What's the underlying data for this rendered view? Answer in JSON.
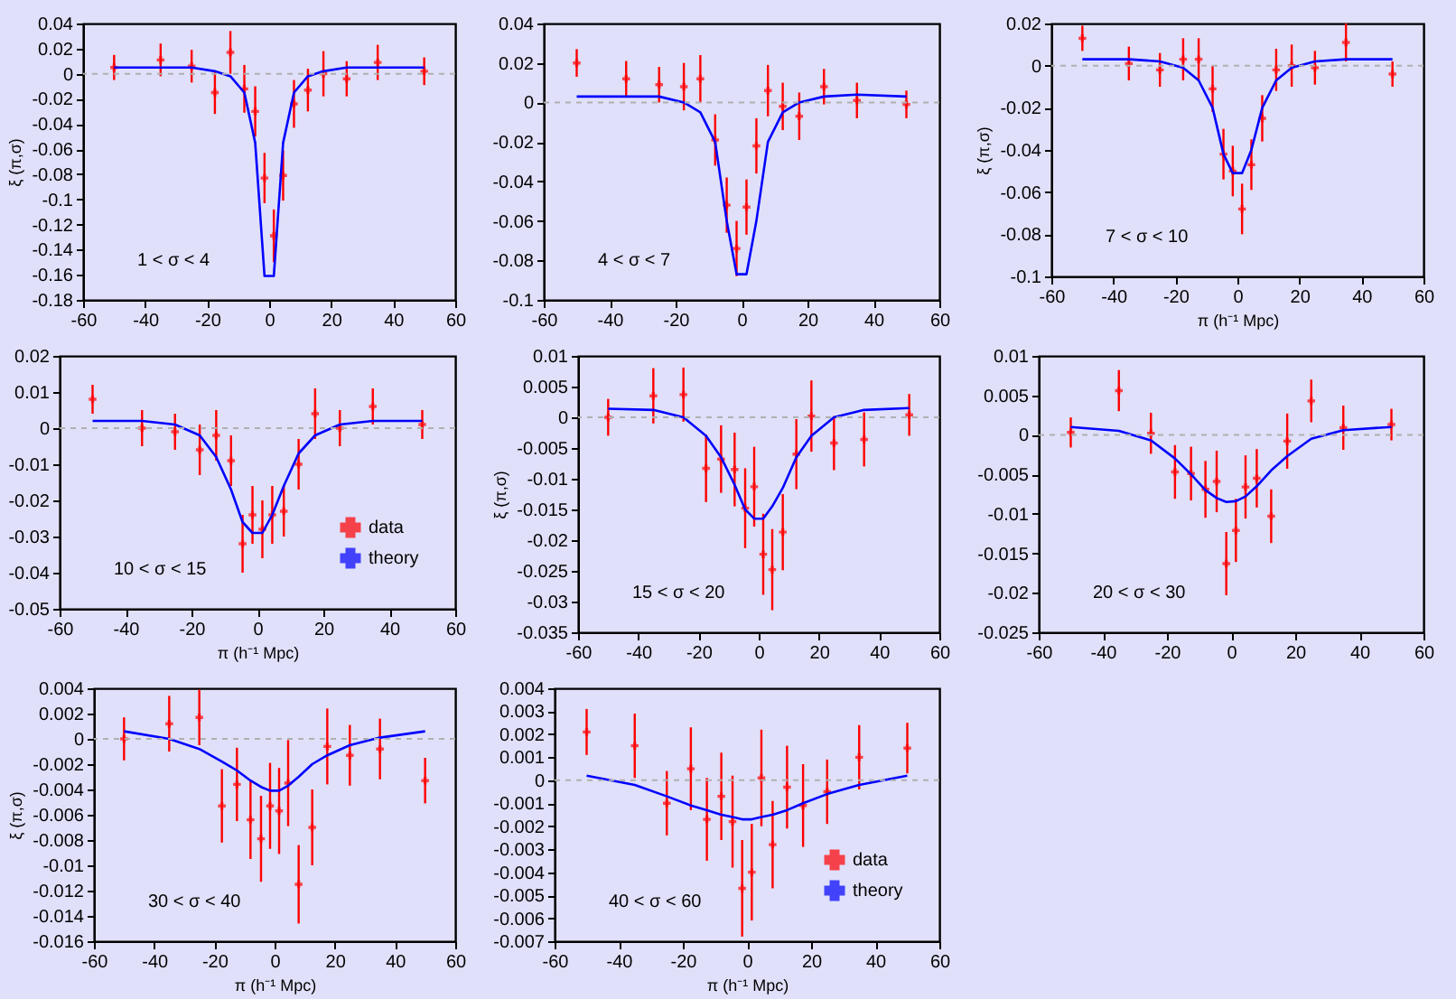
{
  "chart_data": [
    {
      "type": "scatter",
      "ylabel": "ξ (π,σ)",
      "annotations": [
        "1 < σ < 4"
      ],
      "x": [
        -50,
        -35,
        -25,
        -17.5,
        -12.5,
        -8,
        -4.5,
        -1.5,
        1.5,
        4.5,
        8,
        12.5,
        17.5,
        25,
        35,
        50
      ],
      "xlim": [
        -60,
        60
      ],
      "xticks": [
        -60,
        -40,
        -20,
        0,
        20,
        40,
        60
      ],
      "ylim": [
        -0.18,
        0.04
      ],
      "yticks": [
        -0.18,
        -0.16,
        -0.14,
        -0.12,
        -0.1,
        -0.08,
        -0.06,
        -0.04,
        -0.02,
        0,
        0.02,
        0.04
      ],
      "ref_lines": [
        {
          "axis": "y",
          "value": 0,
          "color": "#b0b0b0",
          "line_style": "dashed"
        }
      ],
      "series": [
        {
          "type": "scatter",
          "marker": "cross",
          "color": "#ff0000",
          "values": [
            0.005,
            0.011,
            0.006,
            -0.015,
            0.017,
            -0.012,
            -0.03,
            -0.083,
            -0.129,
            -0.081,
            -0.024,
            -0.013,
            0.0,
            -0.004,
            0.009,
            0.002
          ],
          "errors": [
            0.01,
            0.013,
            0.013,
            0.017,
            0.017,
            0.019,
            0.02,
            0.02,
            0.021,
            0.02,
            0.019,
            0.017,
            0.018,
            0.014,
            0.014,
            0.011
          ]
        },
        {
          "type": "line",
          "color": "#0000ff",
          "values": [
            0.005,
            0.005,
            0.005,
            0.002,
            -0.002,
            -0.015,
            -0.055,
            -0.161,
            -0.161,
            -0.055,
            -0.015,
            -0.002,
            0.002,
            0.005,
            0.005,
            0.005
          ]
        }
      ]
    },
    {
      "type": "scatter",
      "annotations": [
        "4 < σ < 7"
      ],
      "x": [
        -50,
        -35,
        -25,
        -17.5,
        -12.5,
        -8,
        -4.5,
        -1.5,
        1.5,
        4.5,
        8,
        12.5,
        17.5,
        25,
        35,
        50
      ],
      "xlim": [
        -60,
        60
      ],
      "xticks": [
        -60,
        -40,
        -20,
        0,
        20,
        40,
        60
      ],
      "ylim": [
        -0.1,
        0.04
      ],
      "yticks": [
        -0.1,
        -0.08,
        -0.06,
        -0.04,
        -0.02,
        0,
        0.02,
        0.04
      ],
      "ref_lines": [
        {
          "axis": "y",
          "value": 0,
          "color": "#b0b0b0",
          "line_style": "dashed"
        }
      ],
      "series": [
        {
          "type": "scatter",
          "marker": "cross",
          "color": "#ff0000",
          "values": [
            0.02,
            0.012,
            0.009,
            0.008,
            0.012,
            -0.019,
            -0.052,
            -0.074,
            -0.053,
            -0.022,
            0.006,
            -0.002,
            -0.007,
            0.008,
            0.001,
            -0.001
          ],
          "errors": [
            0.007,
            0.009,
            0.009,
            0.012,
            0.012,
            0.013,
            0.014,
            0.014,
            0.014,
            0.014,
            0.013,
            0.012,
            0.012,
            0.009,
            0.009,
            0.007
          ]
        },
        {
          "type": "line",
          "color": "#0000ff",
          "values": [
            0.003,
            0.003,
            0.003,
            0.0,
            -0.005,
            -0.02,
            -0.06,
            -0.087,
            -0.087,
            -0.06,
            -0.02,
            -0.005,
            0.0,
            0.003,
            0.004,
            0.003
          ]
        }
      ]
    },
    {
      "type": "scatter",
      "xlabel": "π (h⁻¹ Mpc)",
      "ylabel": "ξ (π,σ)",
      "annotations": [
        "7 < σ < 10"
      ],
      "x": [
        -50,
        -35,
        -25,
        -17.5,
        -12.5,
        -8,
        -4.5,
        -1.5,
        1.5,
        4.5,
        8,
        12.5,
        17.5,
        25,
        35,
        50
      ],
      "xlim": [
        -60,
        60
      ],
      "xticks": [
        -60,
        -40,
        -20,
        0,
        20,
        40,
        60
      ],
      "ylim": [
        -0.1,
        0.02
      ],
      "yticks": [
        -0.1,
        -0.08,
        -0.06,
        -0.04,
        -0.02,
        0,
        0.02
      ],
      "ref_lines": [
        {
          "axis": "y",
          "value": 0,
          "color": "#b0b0b0",
          "line_style": "dashed"
        }
      ],
      "series": [
        {
          "type": "scatter",
          "marker": "cross",
          "color": "#ff0000",
          "values": [
            0.013,
            0.001,
            -0.002,
            0.003,
            0.003,
            -0.011,
            -0.042,
            -0.05,
            -0.068,
            -0.047,
            -0.025,
            -0.002,
            0.0,
            -0.001,
            0.011,
            -0.004
          ],
          "errors": [
            0.006,
            0.008,
            0.008,
            0.01,
            0.01,
            0.011,
            0.012,
            0.012,
            0.012,
            0.012,
            0.011,
            0.01,
            0.01,
            0.008,
            0.009,
            0.006
          ]
        },
        {
          "type": "line",
          "color": "#0000ff",
          "values": [
            0.003,
            0.003,
            0.002,
            -0.001,
            -0.007,
            -0.02,
            -0.042,
            -0.051,
            -0.051,
            -0.04,
            -0.02,
            -0.007,
            -0.001,
            0.002,
            0.003,
            0.003
          ]
        }
      ]
    },
    {
      "type": "scatter",
      "xlabel": "π (h⁻¹ Mpc)",
      "annotations": [
        "10 < σ < 15"
      ],
      "legend": "bottom right",
      "x": [
        -50,
        -35,
        -25,
        -17.5,
        -12.5,
        -8,
        -4.5,
        -1.5,
        1.5,
        4.5,
        8,
        12.5,
        17.5,
        25,
        35,
        50
      ],
      "xlim": [
        -60,
        60
      ],
      "xticks": [
        -60,
        -40,
        -20,
        0,
        20,
        40,
        60
      ],
      "ylim": [
        -0.05,
        0.02
      ],
      "yticks": [
        -0.05,
        -0.04,
        -0.03,
        -0.02,
        -0.01,
        0,
        0.01,
        0.02
      ],
      "ref_lines": [
        {
          "axis": "y",
          "value": 0,
          "color": "#b0b0b0",
          "line_style": "dashed"
        }
      ],
      "series": [
        {
          "type": "scatter",
          "marker": "cross",
          "name": "data",
          "color": "#ff0000",
          "values": [
            0.008,
            0.0,
            -0.001,
            -0.006,
            -0.002,
            -0.009,
            -0.032,
            -0.024,
            -0.028,
            -0.024,
            -0.023,
            -0.01,
            0.004,
            0.0,
            0.006,
            0.001
          ],
          "errors": [
            0.004,
            0.005,
            0.005,
            0.007,
            0.007,
            0.007,
            0.008,
            0.008,
            0.008,
            0.008,
            0.007,
            0.007,
            0.007,
            0.005,
            0.005,
            0.004
          ]
        },
        {
          "type": "line",
          "name": "theory",
          "color": "#0000ff",
          "values": [
            0.002,
            0.002,
            0.001,
            -0.002,
            -0.008,
            -0.017,
            -0.026,
            -0.029,
            -0.029,
            -0.024,
            -0.016,
            -0.007,
            -0.002,
            0.001,
            0.002,
            0.002
          ]
        }
      ]
    },
    {
      "type": "scatter",
      "ylabel": "ξ (π,σ)",
      "annotations": [
        "15 < σ < 20"
      ],
      "x": [
        -50,
        -35,
        -25,
        -17.5,
        -12.5,
        -8,
        -4.5,
        -1.5,
        1.5,
        4.5,
        8,
        12.5,
        17.5,
        25,
        35,
        50
      ],
      "xlim": [
        -60,
        60
      ],
      "xticks": [
        -60,
        -40,
        -20,
        0,
        20,
        40,
        60
      ],
      "ylim": [
        -0.035,
        0.01
      ],
      "yticks": [
        -0.035,
        -0.03,
        -0.025,
        -0.02,
        -0.015,
        -0.01,
        -0.005,
        0,
        0.005,
        0.01
      ],
      "ref_lines": [
        {
          "axis": "y",
          "value": 0,
          "color": "#b0b0b0",
          "line_style": "dashed"
        }
      ],
      "series": [
        {
          "type": "scatter",
          "marker": "cross",
          "color": "#ff0000",
          "values": [
            0.0,
            0.0035,
            0.0037,
            -0.0083,
            -0.0068,
            -0.0085,
            -0.0148,
            -0.0113,
            -0.0223,
            -0.0248,
            -0.0187,
            -0.006,
            0.0002,
            -0.0042,
            -0.0036,
            0.0004
          ],
          "errors": [
            0.003,
            0.0045,
            0.0044,
            0.0055,
            0.0055,
            0.006,
            0.0065,
            0.0065,
            0.0066,
            0.0066,
            0.0062,
            0.0057,
            0.0058,
            0.0044,
            0.0044,
            0.0034
          ]
        },
        {
          "type": "line",
          "color": "#0000ff",
          "values": [
            0.0014,
            0.0012,
            0.0,
            -0.003,
            -0.0065,
            -0.011,
            -0.015,
            -0.0165,
            -0.0165,
            -0.0145,
            -0.0115,
            -0.0065,
            -0.003,
            0.0,
            0.0012,
            0.0015
          ]
        }
      ]
    },
    {
      "type": "scatter",
      "annotations": [
        "20 < σ < 30"
      ],
      "x": [
        -50,
        -35,
        -25,
        -17.5,
        -12.5,
        -8,
        -4.5,
        -1.5,
        1.5,
        4.5,
        8,
        12.5,
        17.5,
        25,
        35,
        50
      ],
      "xlim": [
        -60,
        60
      ],
      "xticks": [
        -60,
        -40,
        -20,
        0,
        20,
        40,
        60
      ],
      "ylim": [
        -0.025,
        0.01
      ],
      "yticks": [
        -0.025,
        -0.02,
        -0.015,
        -0.01,
        -0.005,
        0,
        0.005,
        0.01
      ],
      "ref_lines": [
        {
          "axis": "y",
          "value": 0,
          "color": "#b0b0b0",
          "line_style": "dashed"
        }
      ],
      "series": [
        {
          "type": "scatter",
          "marker": "cross",
          "color": "#ff0000",
          "values": [
            0.0003,
            0.0056,
            0.0002,
            -0.0047,
            -0.0049,
            -0.0069,
            -0.0059,
            -0.0163,
            -0.0121,
            -0.0066,
            -0.0055,
            -0.0103,
            -0.0008,
            0.0043,
            0.0009,
            0.0013
          ],
          "errors": [
            0.0019,
            0.0026,
            0.0026,
            0.0034,
            0.0034,
            0.0036,
            0.0039,
            0.004,
            0.004,
            0.004,
            0.0037,
            0.0034,
            0.0035,
            0.0027,
            0.0028,
            0.002
          ]
        },
        {
          "type": "line",
          "color": "#0000ff",
          "values": [
            0.001,
            0.0005,
            -0.0007,
            -0.003,
            -0.005,
            -0.007,
            -0.008,
            -0.0085,
            -0.0084,
            -0.0078,
            -0.0065,
            -0.0045,
            -0.0027,
            -0.0005,
            0.0006,
            0.001
          ]
        }
      ]
    },
    {
      "type": "scatter",
      "xlabel": "π (h⁻¹ Mpc)",
      "ylabel": "ξ (π,σ)",
      "annotations": [
        "30 < σ < 40"
      ],
      "x": [
        -50,
        -35,
        -25,
        -17.5,
        -12.5,
        -8,
        -4.5,
        -1.5,
        1.5,
        4.5,
        8,
        12.5,
        17.5,
        25,
        35,
        50
      ],
      "xlim": [
        -60,
        60
      ],
      "xticks": [
        -60,
        -40,
        -20,
        0,
        20,
        40,
        60
      ],
      "ylim": [
        -0.016,
        0.004
      ],
      "yticks": [
        -0.016,
        -0.014,
        -0.012,
        -0.01,
        -0.008,
        -0.006,
        -0.004,
        -0.002,
        0,
        0.002,
        0.004
      ],
      "ref_lines": [
        {
          "axis": "y",
          "value": 0,
          "color": "#b0b0b0",
          "line_style": "dashed"
        }
      ],
      "series": [
        {
          "type": "scatter",
          "marker": "cross",
          "color": "#ff0000",
          "values": [
            0.0,
            0.0012,
            0.0017,
            -0.0053,
            -0.0036,
            -0.0064,
            -0.0079,
            -0.0053,
            -0.0057,
            -0.0035,
            -0.0115,
            -0.007,
            -0.0006,
            -0.0013,
            -0.0008,
            -0.0033
          ],
          "errors": [
            0.0017,
            0.0022,
            0.0022,
            0.0029,
            0.0029,
            0.0031,
            0.0034,
            0.0034,
            0.0034,
            0.0034,
            0.0031,
            0.003,
            0.003,
            0.0024,
            0.0024,
            0.0018
          ]
        },
        {
          "type": "line",
          "color": "#0000ff",
          "values": [
            0.0006,
            0.0,
            -0.0008,
            -0.0018,
            -0.0025,
            -0.0033,
            -0.0038,
            -0.0041,
            -0.0041,
            -0.0037,
            -0.003,
            -0.002,
            -0.0013,
            -0.0005,
            0.0001,
            0.0006
          ]
        }
      ]
    },
    {
      "type": "scatter",
      "xlabel": "π (h⁻¹ Mpc)",
      "annotations": [
        "40 < σ < 60"
      ],
      "legend": "bottom right",
      "x": [
        -50,
        -35,
        -25,
        -17.5,
        -12.5,
        -8,
        -4.5,
        -1.5,
        1.5,
        4.5,
        8,
        12.5,
        17.5,
        25,
        35,
        50
      ],
      "xlim": [
        -60,
        60
      ],
      "xticks": [
        -60,
        -40,
        -20,
        0,
        20,
        40,
        60
      ],
      "ylim": [
        -0.007,
        0.004
      ],
      "yticks": [
        -0.007,
        -0.006,
        -0.005,
        -0.004,
        -0.003,
        -0.002,
        -0.001,
        0,
        0.001,
        0.002,
        0.003,
        0.004
      ],
      "ref_lines": [
        {
          "axis": "y",
          "value": 0,
          "color": "#b0b0b0",
          "line_style": "dashed"
        }
      ],
      "series": [
        {
          "type": "scatter",
          "marker": "cross",
          "name": "data",
          "color": "#ff0000",
          "values": [
            0.0021,
            0.0015,
            -0.001,
            0.0005,
            -0.0017,
            -0.0007,
            -0.0018,
            -0.0047,
            -0.004,
            0.0001,
            -0.0028,
            -0.0003,
            -0.0011,
            -0.0005,
            0.001,
            0.0014
          ],
          "errors": [
            0.001,
            0.0014,
            0.0014,
            0.0018,
            0.0018,
            0.0019,
            0.002,
            0.0021,
            0.0021,
            0.0021,
            0.0019,
            0.0018,
            0.0018,
            0.0014,
            0.0014,
            0.0011
          ]
        },
        {
          "type": "line",
          "name": "theory",
          "color": "#0000ff",
          "values": [
            0.0002,
            -0.0002,
            -0.0007,
            -0.0011,
            -0.0013,
            -0.0015,
            -0.0016,
            -0.0017,
            -0.0017,
            -0.0016,
            -0.0015,
            -0.0013,
            -0.001,
            -0.0006,
            -0.0002,
            0.0002
          ]
        }
      ]
    }
  ]
}
